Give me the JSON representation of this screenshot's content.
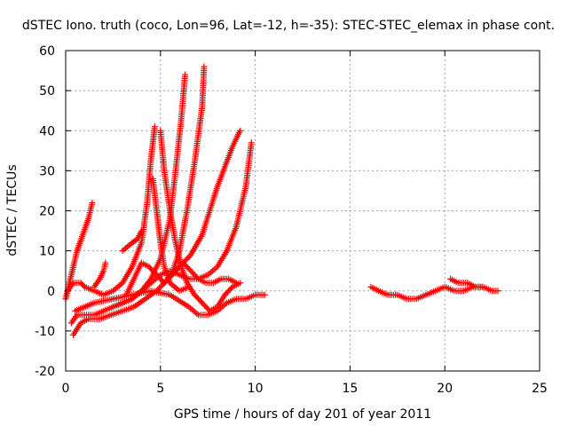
{
  "chart_data": {
    "type": "scatter",
    "title": "dSTEC Iono. truth (coco, Lon=96, Lat=-12, h=-35): STEC-STEC_elemax in phase cont.",
    "xlabel": "GPS time / hours of day 201 of year 2011",
    "ylabel": "dSTEC  / TECUs",
    "xlim": [
      0,
      25
    ],
    "ylim": [
      -20,
      60
    ],
    "xticks": [
      0,
      5,
      10,
      15,
      20,
      25
    ],
    "yticks": [
      -20,
      -10,
      0,
      10,
      20,
      30,
      40,
      50,
      60
    ],
    "grid": true,
    "marker": "plus",
    "color": "#ff0000",
    "series": [
      {
        "x": [
          0.0,
          0.3,
          0.6,
          0.9,
          1.2,
          1.4
        ],
        "y": [
          -2,
          4,
          10,
          14,
          18,
          22
        ]
      },
      {
        "x": [
          0.1,
          0.4,
          0.8,
          1.0,
          1.5,
          2.0,
          2.5,
          3.0,
          3.5,
          4.0,
          4.3,
          4.5,
          4.7
        ],
        "y": [
          0,
          2,
          2,
          1,
          0,
          -1,
          0,
          2,
          6,
          12,
          22,
          33,
          41
        ]
      },
      {
        "x": [
          0.3,
          0.6,
          1.0,
          1.5,
          2.0,
          2.5,
          3.0,
          3.5,
          4.0,
          4.5,
          5.0,
          5.5,
          5.8,
          6.1,
          6.3
        ],
        "y": [
          -8,
          -6,
          -6,
          -6,
          -5,
          -4,
          -3,
          -2,
          0,
          3,
          8,
          18,
          30,
          43,
          54
        ]
      },
      {
        "x": [
          0.4,
          0.8,
          1.2,
          1.8,
          2.4,
          3.0,
          3.6,
          4.2,
          4.8,
          5.4,
          6.0,
          6.6,
          7.2,
          7.6,
          8.0,
          8.4,
          8.8,
          9.2
        ],
        "y": [
          -11,
          -8,
          -7,
          -7,
          -6,
          -5,
          -4,
          -2,
          0,
          3,
          6,
          9,
          14,
          20,
          26,
          31,
          36,
          40
        ]
      },
      {
        "x": [
          1.5,
          1.8,
          2.0,
          2.1
        ],
        "y": [
          1,
          3,
          5,
          7
        ]
      },
      {
        "x": [
          2.5,
          3.0,
          3.5,
          4.0,
          4.5,
          5.0,
          5.5,
          6.0,
          6.5,
          7.0,
          7.5,
          8.0,
          8.5,
          9.0,
          9.5,
          9.8
        ],
        "y": [
          -4,
          -3,
          -2,
          0,
          2,
          4,
          5,
          4,
          3,
          3,
          4,
          6,
          10,
          16,
          26,
          37
        ]
      },
      {
        "x": [
          3.2,
          3.6,
          4.0,
          4.4,
          4.8,
          5.2,
          5.6,
          6.0,
          6.4,
          6.8,
          7.2,
          7.3
        ],
        "y": [
          -1,
          3,
          7,
          6,
          4,
          2,
          4,
          10,
          20,
          32,
          46,
          56
        ]
      },
      {
        "x": [
          3.0,
          3.5,
          3.8,
          4.0
        ],
        "y": [
          10,
          12,
          13,
          15
        ]
      },
      {
        "x": [
          5.0,
          5.2,
          5.5,
          5.8,
          6.1,
          6.4,
          6.8,
          7.2,
          7.6,
          8.0,
          8.4,
          8.8,
          9.2
        ],
        "y": [
          40,
          30,
          20,
          12,
          6,
          2,
          -1,
          -3,
          -5,
          -4,
          -1,
          1,
          2
        ]
      },
      {
        "x": [
          4.6,
          4.8,
          5.0,
          5.2,
          5.5,
          6.0,
          6.5
        ],
        "y": [
          28,
          20,
          12,
          6,
          2,
          0,
          1
        ]
      },
      {
        "x": [
          0.5,
          1.5,
          2.5,
          3.5,
          4.5,
          5.5,
          6.5,
          7.0,
          7.5,
          8.0,
          8.5,
          9.0,
          9.5,
          10.0,
          10.5
        ],
        "y": [
          -5,
          -3,
          -2,
          -1,
          0,
          -1,
          -4,
          -6,
          -6,
          -5,
          -3,
          -2,
          -2,
          -1,
          -1
        ]
      },
      {
        "x": [
          5.4,
          5.8,
          6.2,
          6.6,
          7.0,
          7.4,
          7.8,
          8.2,
          8.6,
          9.0
        ],
        "y": [
          3,
          5,
          7,
          5,
          3,
          2,
          2,
          3,
          3,
          2
        ]
      },
      {
        "x": [
          16.1,
          16.5,
          17.0,
          17.5,
          18.0,
          18.5,
          19.0,
          19.5,
          20.0,
          20.5,
          21.0,
          21.5,
          22.0,
          22.5,
          22.8
        ],
        "y": [
          1,
          0,
          -1,
          -1,
          -2,
          -2,
          -1,
          0,
          1,
          0,
          0,
          1,
          1,
          0,
          0
        ]
      },
      {
        "x": [
          20.3,
          20.7,
          21.2,
          21.6,
          22.0
        ],
        "y": [
          3,
          2,
          2,
          1,
          1
        ]
      }
    ]
  }
}
